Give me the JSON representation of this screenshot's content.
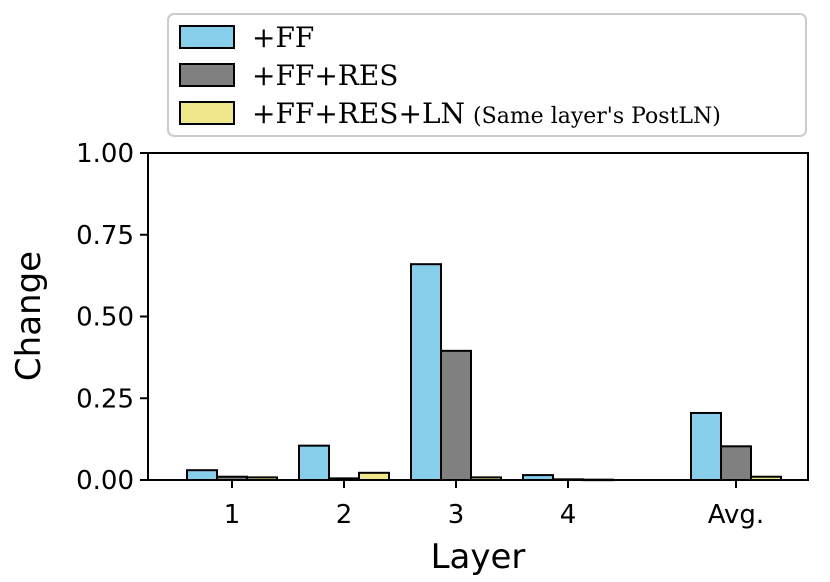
{
  "chart_data": {
    "type": "bar",
    "categories": [
      "1",
      "2",
      "3",
      "4",
      "Avg."
    ],
    "series": [
      {
        "name": "+FF",
        "color": "#87CEEB",
        "values": [
          0.03,
          0.105,
          0.66,
          0.015,
          0.205
        ]
      },
      {
        "name": "+FF+RES",
        "color": "#808080",
        "values": [
          0.01,
          0.005,
          0.395,
          0.002,
          0.103
        ]
      },
      {
        "name": "+FF+RES+LN",
        "note": "(Same layer's PostLN)",
        "color": "#F0E68C",
        "values": [
          0.008,
          0.022,
          0.008,
          0.001,
          0.01
        ]
      }
    ],
    "xlabel": "Layer",
    "ylabel": "Change",
    "ylim": [
      0,
      1
    ],
    "yticks": [
      "0.00",
      "0.25",
      "0.50",
      "0.75",
      "1.00"
    ],
    "legend_position": "top"
  }
}
